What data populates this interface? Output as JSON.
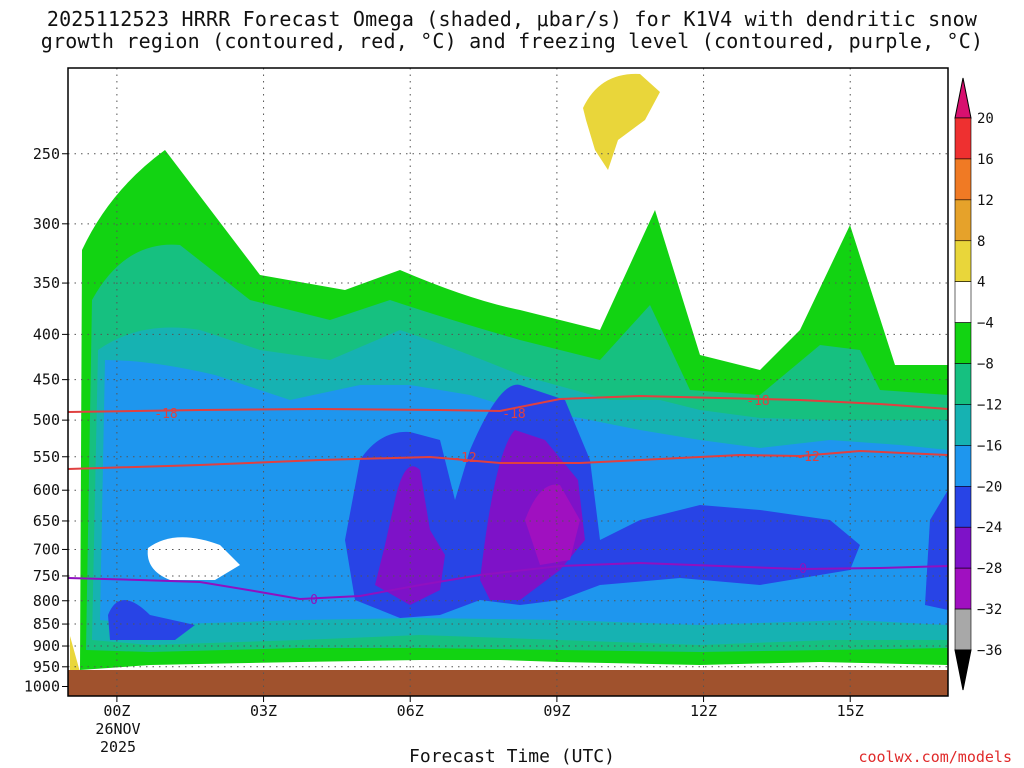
{
  "title_line1": "2025112523 HRRR Forecast Omega (shaded, μbar/s) for K1V4 with dendritic snow",
  "title_line2": "growth region (contoured, red, °C) and freezing level (contoured, purple, °C)",
  "xlabel": "Forecast Time (UTC)",
  "credit": "coolwx.com/models",
  "chart_data": {
    "type": "heatmap",
    "title": "2025112523 HRRR Forecast Omega (shaded, μbar/s) for K1V4 with dendritic snow growth region (contoured, red, °C) and freezing level (contoured, purple, °C)",
    "xlabel": "Forecast Time (UTC)",
    "ylabel": "",
    "x_ticks": [
      "00Z",
      "03Z",
      "06Z",
      "09Z",
      "12Z",
      "15Z"
    ],
    "x_tick_hours": [
      0,
      3,
      6,
      9,
      12,
      15
    ],
    "x_date_label": [
      "26NOV",
      "2025"
    ],
    "xlim_hours": [
      -1,
      17
    ],
    "y_ticks": [
      250,
      300,
      350,
      400,
      450,
      500,
      550,
      600,
      650,
      700,
      750,
      800,
      850,
      900,
      950,
      1000
    ],
    "ylim_hpa": [
      1025,
      200
    ],
    "grid": true,
    "colorbar": {
      "ticks": [
        "20",
        "16",
        "12",
        "8",
        "4",
        "−4",
        "−8",
        "−12",
        "−16",
        "−20",
        "−24",
        "−28",
        "−32",
        "−36"
      ],
      "colors": [
        "#d8106f",
        "#ee3030",
        "#f07a24",
        "#e6a22a",
        "#e9d63a",
        "#ffffff",
        "#12d312",
        "#16c080",
        "#16b2b2",
        "#1e96ee",
        "#2844e6",
        "#7e12c8",
        "#a010c0",
        "#a8a8a8",
        "#000000"
      ]
    },
    "contours": [
      {
        "name": "-18",
        "color": "#e04040",
        "level_hpa": 504
      },
      {
        "name": "-12",
        "color": "#e04040",
        "level_hpa": 575
      },
      {
        "name": "0",
        "color": "#9010c0",
        "level_hpa": 780
      }
    ],
    "ground_color": "#a0522d"
  }
}
